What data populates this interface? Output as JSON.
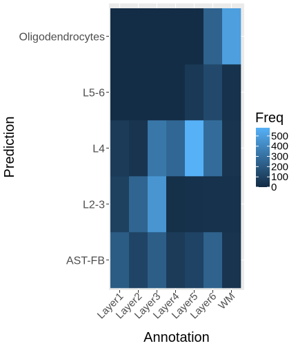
{
  "chart_data": {
    "type": "heatmap",
    "xlabel": "Annotation",
    "ylabel": "Prediction",
    "x_categories": [
      "Layer1",
      "Layer2",
      "Layer3",
      "Layer4",
      "Layer5",
      "Layer6",
      "WM"
    ],
    "y_categories": [
      "AST-FB",
      "L2-3",
      "L4",
      "L5-6",
      "Oligodendrocytes"
    ],
    "values": [
      [
        210,
        110,
        220,
        70,
        105,
        240,
        40
      ],
      [
        95,
        250,
        460,
        20,
        25,
        30,
        30
      ],
      [
        70,
        40,
        330,
        260,
        580,
        280,
        40
      ],
      [
        10,
        10,
        10,
        10,
        60,
        130,
        30
      ],
      [
        10,
        10,
        10,
        10,
        10,
        240,
        500
      ]
    ],
    "legend": {
      "title": "Freq",
      "ticks": [
        0,
        100,
        200,
        300,
        400,
        500
      ],
      "range": [
        0,
        580
      ],
      "low_color": "#132B43",
      "high_color": "#56B1F7",
      "position": "right"
    },
    "grid": true
  }
}
